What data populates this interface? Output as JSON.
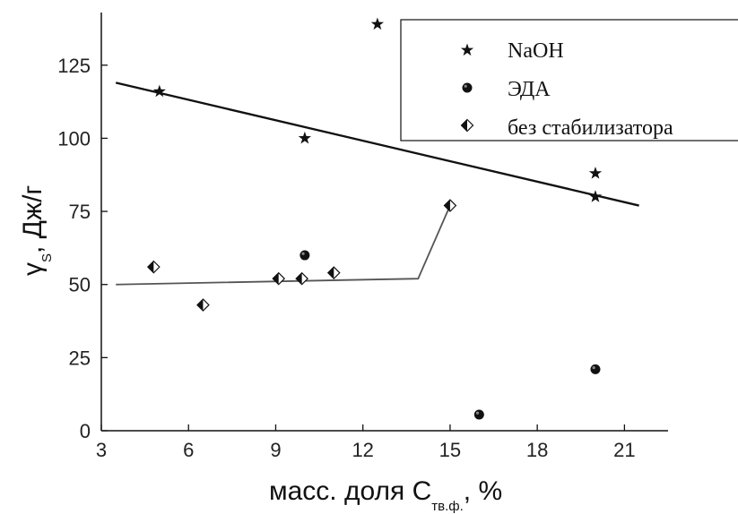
{
  "chart_data": {
    "type": "scatter",
    "xlabel": {
      "main": "масс. доля С",
      "subscript": "тв.ф.",
      "suffix": ", %"
    },
    "ylabel": {
      "main": "γ",
      "subscript": "S",
      "suffix": ", Дж/г"
    },
    "xlim": [
      3,
      22.5
    ],
    "ylim": [
      0,
      143
    ],
    "x_ticks": [
      "3",
      "6",
      "9",
      "12",
      "15",
      "18",
      "21"
    ],
    "y_ticks": [
      "0",
      "25",
      "50",
      "75",
      "100",
      "125"
    ],
    "legend_position": "top-right",
    "series": [
      {
        "name": "NaOH",
        "marker": "star",
        "points": [
          [
            5,
            116
          ],
          [
            10,
            100
          ],
          [
            12.5,
            139
          ],
          [
            20,
            88
          ],
          [
            20,
            80
          ]
        ]
      },
      {
        "name": "ЭДА",
        "marker": "circle",
        "points": [
          [
            10,
            60
          ],
          [
            16,
            5.5
          ],
          [
            20,
            21
          ]
        ]
      },
      {
        "name": "без стабилизатора",
        "marker": "half-diamond",
        "points": [
          [
            4.8,
            56
          ],
          [
            6.5,
            43
          ],
          [
            9.1,
            52
          ],
          [
            9.9,
            52
          ],
          [
            11,
            54
          ],
          [
            15,
            77
          ]
        ]
      }
    ],
    "fit_lines": [
      {
        "points": [
          [
            3.5,
            119
          ],
          [
            21.5,
            77
          ]
        ],
        "color": "#111111"
      },
      {
        "points": [
          [
            3.5,
            50
          ],
          [
            13.9,
            52
          ],
          [
            15,
            77
          ]
        ],
        "color": "#555555"
      }
    ]
  }
}
